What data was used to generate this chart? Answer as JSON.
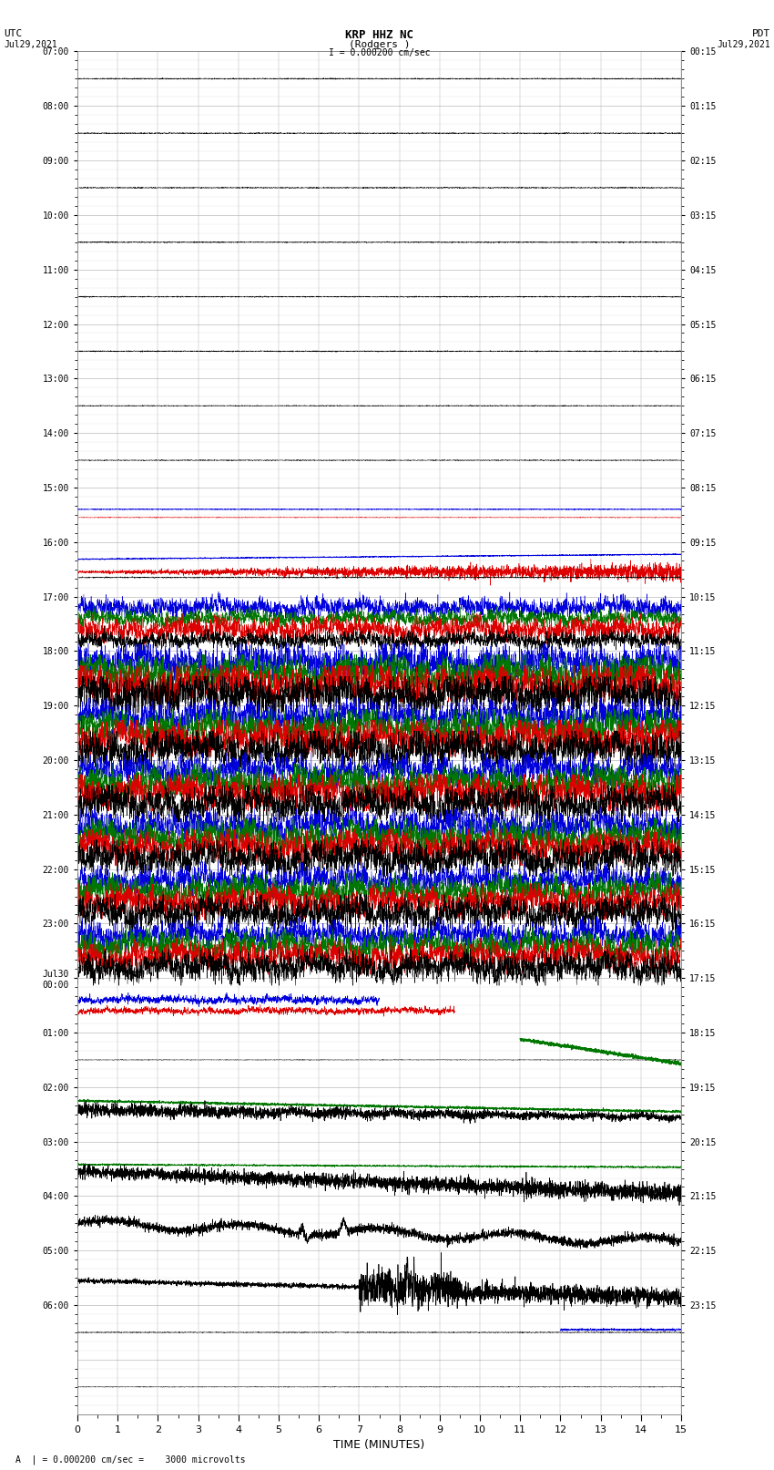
{
  "title_line1": "KRP HHZ NC",
  "title_line2": "(Rodgers )",
  "title_scale": "I = 0.000200 cm/sec",
  "label_left": "UTC",
  "label_right": "PDT",
  "date_left": "Jul29,2021",
  "date_right": "Jul29,2021",
  "xlabel": "TIME (MINUTES)",
  "xmin": 0,
  "xmax": 15,
  "xticks": [
    0,
    1,
    2,
    3,
    4,
    5,
    6,
    7,
    8,
    9,
    10,
    11,
    12,
    13,
    14,
    15
  ],
  "footer": "A  | = 0.000200 cm/sec =    3000 microvolts",
  "background_color": "#ffffff",
  "grid_color": "#aaaaaa",
  "n_rows": 48,
  "utc_labels": [
    "07:00",
    "08:00",
    "09:00",
    "10:00",
    "11:00",
    "12:00",
    "13:00",
    "14:00",
    "15:00",
    "16:00",
    "17:00",
    "18:00",
    "19:00",
    "20:00",
    "21:00",
    "22:00",
    "23:00",
    "Jul30\n00:00",
    "01:00",
    "02:00",
    "03:00",
    "04:00",
    "05:00",
    "06:00"
  ],
  "pdt_labels": [
    "00:15",
    "01:15",
    "02:15",
    "03:15",
    "04:15",
    "05:15",
    "06:15",
    "07:15",
    "08:15",
    "09:15",
    "10:15",
    "11:15",
    "12:15",
    "13:15",
    "14:15",
    "15:15",
    "16:15",
    "17:15",
    "18:15",
    "19:15",
    "20:15",
    "21:15",
    "22:15",
    "23:15"
  ],
  "quiet_rows": 18,
  "noisy_rows": 17,
  "post_rows": 13
}
